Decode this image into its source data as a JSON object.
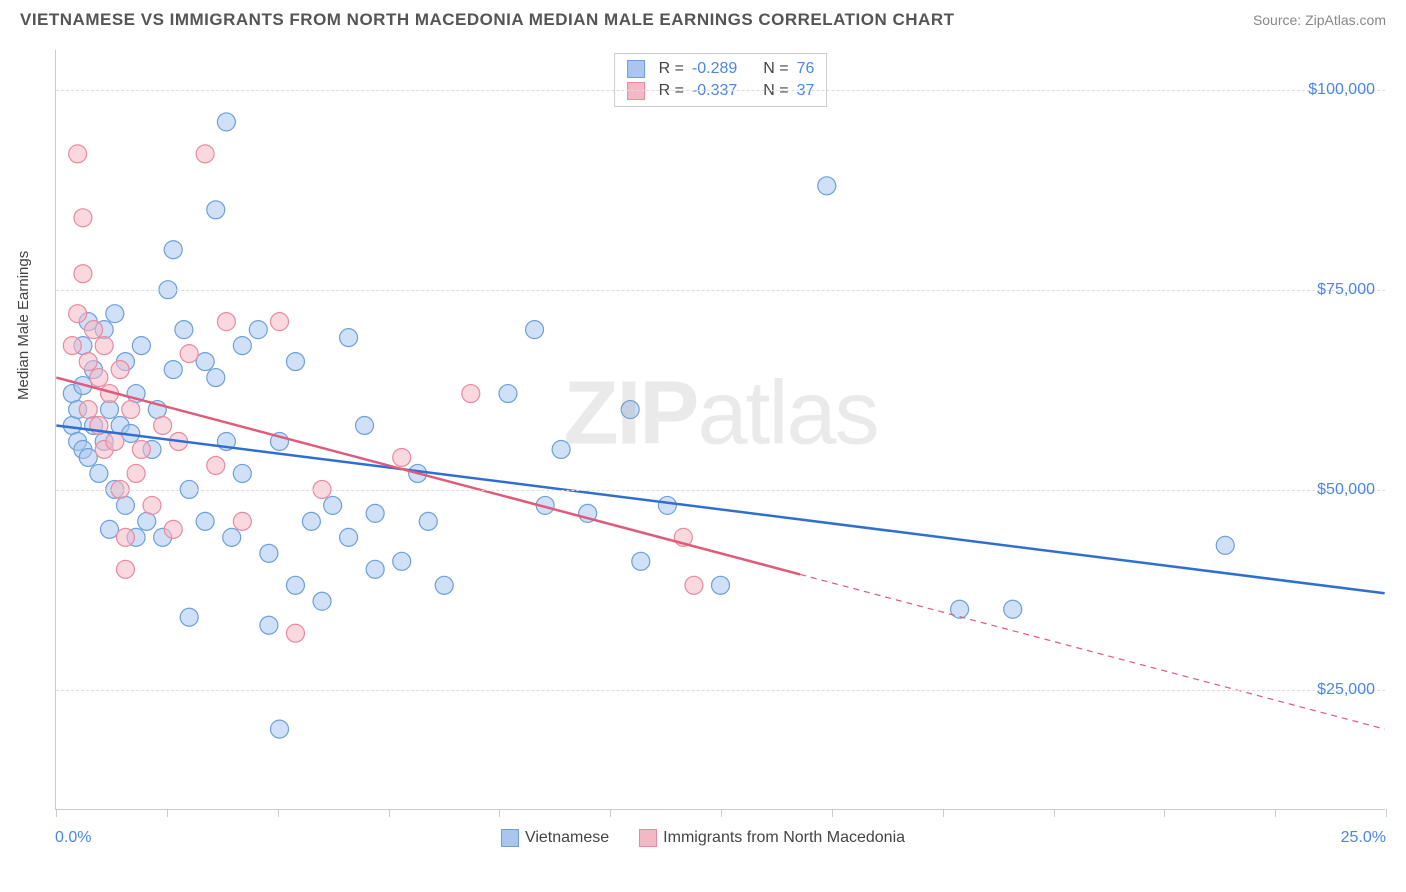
{
  "header": {
    "title": "VIETNAMESE VS IMMIGRANTS FROM NORTH MACEDONIA MEDIAN MALE EARNINGS CORRELATION CHART",
    "source": "Source: ZipAtlas.com"
  },
  "chart": {
    "type": "scatter",
    "ylabel": "Median Male Earnings",
    "xlim": [
      0,
      25
    ],
    "ylim": [
      10000,
      105000
    ],
    "yticks": [
      25000,
      50000,
      75000,
      100000
    ],
    "ytick_labels": [
      "$25,000",
      "$50,000",
      "$75,000",
      "$100,000"
    ],
    "xtick_min_label": "0.0%",
    "xtick_max_label": "25.0%",
    "xtick_positions": [
      0,
      2.08,
      4.17,
      6.25,
      8.33,
      10.42,
      12.5,
      14.58,
      16.67,
      18.75,
      20.83,
      22.92,
      25
    ],
    "background_color": "#ffffff",
    "grid_color": "#dddddd",
    "axis_color": "#cccccc",
    "tick_label_color": "#4a86e8",
    "ylabel_color": "#444444",
    "marker_radius": 9,
    "marker_stroke_width": 1.2,
    "trend_line_width": 2.5,
    "watermark": "ZIPatlas",
    "series": [
      {
        "name": "Vietnamese",
        "fill": "#aac6ee",
        "stroke": "#6f9fd8",
        "fill_opacity": 0.55,
        "trend_color": "#2f6fd0",
        "trend": {
          "x1": 0,
          "y1": 58000,
          "x2": 25,
          "y2": 37000
        },
        "trend_dashed_from_x": null,
        "points": [
          [
            0.3,
            62000
          ],
          [
            0.3,
            58000
          ],
          [
            0.4,
            60000
          ],
          [
            0.4,
            56000
          ],
          [
            0.5,
            55000
          ],
          [
            0.5,
            63000
          ],
          [
            0.5,
            68000
          ],
          [
            0.6,
            54000
          ],
          [
            0.7,
            65000
          ],
          [
            0.7,
            58000
          ],
          [
            0.8,
            52000
          ],
          [
            0.9,
            70000
          ],
          [
            0.9,
            56000
          ],
          [
            1.0,
            60000
          ],
          [
            1.1,
            72000
          ],
          [
            1.1,
            50000
          ],
          [
            1.2,
            58000
          ],
          [
            1.3,
            48000
          ],
          [
            1.3,
            66000
          ],
          [
            1.4,
            57000
          ],
          [
            1.5,
            44000
          ],
          [
            1.5,
            62000
          ],
          [
            1.6,
            68000
          ],
          [
            1.7,
            46000
          ],
          [
            1.8,
            55000
          ],
          [
            1.9,
            60000
          ],
          [
            2.0,
            44000
          ],
          [
            2.1,
            75000
          ],
          [
            2.2,
            80000
          ],
          [
            2.2,
            65000
          ],
          [
            2.4,
            70000
          ],
          [
            2.5,
            50000
          ],
          [
            2.5,
            34000
          ],
          [
            2.8,
            46000
          ],
          [
            2.8,
            66000
          ],
          [
            3.0,
            85000
          ],
          [
            3.0,
            64000
          ],
          [
            3.2,
            96000
          ],
          [
            3.2,
            56000
          ],
          [
            3.3,
            44000
          ],
          [
            3.5,
            68000
          ],
          [
            3.5,
            52000
          ],
          [
            3.8,
            70000
          ],
          [
            4.0,
            42000
          ],
          [
            4.0,
            33000
          ],
          [
            4.2,
            56000
          ],
          [
            4.2,
            20000
          ],
          [
            4.5,
            38000
          ],
          [
            4.5,
            66000
          ],
          [
            4.8,
            46000
          ],
          [
            5.0,
            36000
          ],
          [
            5.2,
            48000
          ],
          [
            5.5,
            44000
          ],
          [
            5.5,
            69000
          ],
          [
            5.8,
            58000
          ],
          [
            6.0,
            40000
          ],
          [
            6.0,
            47000
          ],
          [
            6.5,
            41000
          ],
          [
            6.8,
            52000
          ],
          [
            7.0,
            46000
          ],
          [
            7.3,
            38000
          ],
          [
            8.5,
            62000
          ],
          [
            9.0,
            70000
          ],
          [
            9.2,
            48000
          ],
          [
            9.5,
            55000
          ],
          [
            10.0,
            47000
          ],
          [
            10.8,
            60000
          ],
          [
            11.0,
            41000
          ],
          [
            11.5,
            48000
          ],
          [
            12.5,
            38000
          ],
          [
            14.5,
            88000
          ],
          [
            17.0,
            35000
          ],
          [
            18.0,
            35000
          ],
          [
            22.0,
            43000
          ],
          [
            1.0,
            45000
          ],
          [
            0.6,
            71000
          ]
        ]
      },
      {
        "name": "Immigrants from North Macedonia",
        "fill": "#f4b8c4",
        "stroke": "#e88aa0",
        "fill_opacity": 0.55,
        "trend_color": "#e05a7a",
        "trend": {
          "x1": 0,
          "y1": 64000,
          "x2": 25,
          "y2": 20000
        },
        "trend_dashed_from_x": 14,
        "points": [
          [
            0.3,
            68000
          ],
          [
            0.4,
            92000
          ],
          [
            0.4,
            72000
          ],
          [
            0.5,
            77000
          ],
          [
            0.5,
            84000
          ],
          [
            0.6,
            60000
          ],
          [
            0.6,
            66000
          ],
          [
            0.7,
            70000
          ],
          [
            0.8,
            58000
          ],
          [
            0.8,
            64000
          ],
          [
            0.9,
            55000
          ],
          [
            0.9,
            68000
          ],
          [
            1.0,
            62000
          ],
          [
            1.1,
            56000
          ],
          [
            1.2,
            65000
          ],
          [
            1.2,
            50000
          ],
          [
            1.3,
            44000
          ],
          [
            1.3,
            40000
          ],
          [
            1.4,
            60000
          ],
          [
            1.5,
            52000
          ],
          [
            1.6,
            55000
          ],
          [
            1.8,
            48000
          ],
          [
            2.0,
            58000
          ],
          [
            2.2,
            45000
          ],
          [
            2.3,
            56000
          ],
          [
            2.5,
            67000
          ],
          [
            2.8,
            92000
          ],
          [
            3.0,
            53000
          ],
          [
            3.2,
            71000
          ],
          [
            3.5,
            46000
          ],
          [
            4.2,
            71000
          ],
          [
            4.5,
            32000
          ],
          [
            5.0,
            50000
          ],
          [
            6.5,
            54000
          ],
          [
            7.8,
            62000
          ],
          [
            12.0,
            38000
          ],
          [
            11.8,
            44000
          ]
        ]
      }
    ],
    "legend_top": [
      {
        "swatch_fill": "#aac6ee",
        "swatch_stroke": "#6f9fd8",
        "r_label": "R =",
        "r": "-0.289",
        "n_label": "N =",
        "n": "76"
      },
      {
        "swatch_fill": "#f4b8c4",
        "swatch_stroke": "#e88aa0",
        "r_label": "R =",
        "r": "-0.337",
        "n_label": "N =",
        "n": "37"
      }
    ],
    "legend_bottom": [
      {
        "swatch_fill": "#aac6ee",
        "swatch_stroke": "#6f9fd8",
        "label": "Vietnamese"
      },
      {
        "swatch_fill": "#f4b8c4",
        "swatch_stroke": "#e88aa0",
        "label": "Immigrants from North Macedonia"
      }
    ]
  }
}
